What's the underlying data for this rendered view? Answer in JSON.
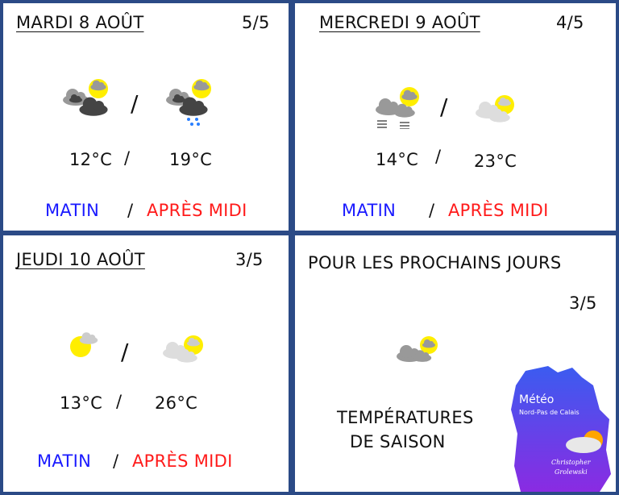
{
  "days": [
    {
      "date": "MARDI 8 AOÛT",
      "rating": "5/5",
      "morning_icon": "mostly-cloudy-dark",
      "afternoon_icon": "cloudy-rain-showers",
      "temp_morning": "12°C",
      "temp_afternoon": "19°C",
      "separator": "/",
      "morning_label": "MATIN",
      "afternoon_label": "APRÈS MIDI"
    },
    {
      "date": "MERCREDI 9 AOÛT",
      "rating": "4/5",
      "morning_icon": "cloudy-fog",
      "afternoon_icon": "partly-cloudy-light",
      "temp_morning": "14°C",
      "temp_afternoon": "23°C",
      "separator": "/",
      "morning_label": "MATIN",
      "afternoon_label": "APRÈS MIDI"
    },
    {
      "date": "JEUDI 10 AOÛT",
      "rating": "3/5",
      "morning_icon": "mostly-sunny",
      "afternoon_icon": "partly-cloudy-light",
      "temp_morning": "13°C",
      "temp_afternoon": "26°C",
      "separator": "/",
      "morning_label": "MATIN",
      "afternoon_label": "APRÈS MIDI"
    }
  ],
  "outlook": {
    "title": "POUR LES PROCHAINS JOURS",
    "rating": "3/5",
    "icon": "partly-cloudy-grey",
    "text_line1": "TEMPÉRATURES",
    "text_line2": "DE SAISON"
  },
  "logo": {
    "title": "Météo",
    "subtitle": "Nord-Pas de Calais",
    "author_line1": "Christopher",
    "author_line2": "Grolewski"
  },
  "colors": {
    "border": "#2b4a86",
    "morning": "#1a1aff",
    "afternoon": "#ff1a1a",
    "sun": "#ffee00"
  }
}
